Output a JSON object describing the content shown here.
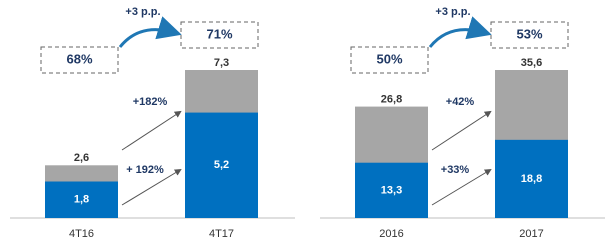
{
  "chart_data": [
    {
      "type": "bar",
      "categories": [
        "4T16",
        "4T17"
      ],
      "series": [
        {
          "color": "#a6a6a6",
          "values": [
            2.6,
            7.3
          ],
          "value_labels": [
            "2,6",
            "7,3"
          ]
        },
        {
          "color": "#0070c0",
          "values": [
            1.8,
            5.2
          ],
          "value_labels": [
            "1,8",
            "5,2"
          ]
        }
      ],
      "box_labels": [
        "68%",
        "71%"
      ],
      "change_label": "+3 p.p.",
      "growth_labels": [
        "+182%",
        "+ 192%"
      ]
    },
    {
      "type": "bar",
      "categories": [
        "2016",
        "2017"
      ],
      "series": [
        {
          "color": "#a6a6a6",
          "values": [
            26.8,
            35.6
          ],
          "value_labels": [
            "26,8",
            "35,6"
          ]
        },
        {
          "color": "#0070c0",
          "values": [
            13.3,
            18.8
          ],
          "value_labels": [
            "13,3",
            "18,8"
          ]
        }
      ],
      "box_labels": [
        "50%",
        "53%"
      ],
      "change_label": "+3 p.p.",
      "growth_labels": [
        "+42%",
        "+33%"
      ]
    }
  ]
}
